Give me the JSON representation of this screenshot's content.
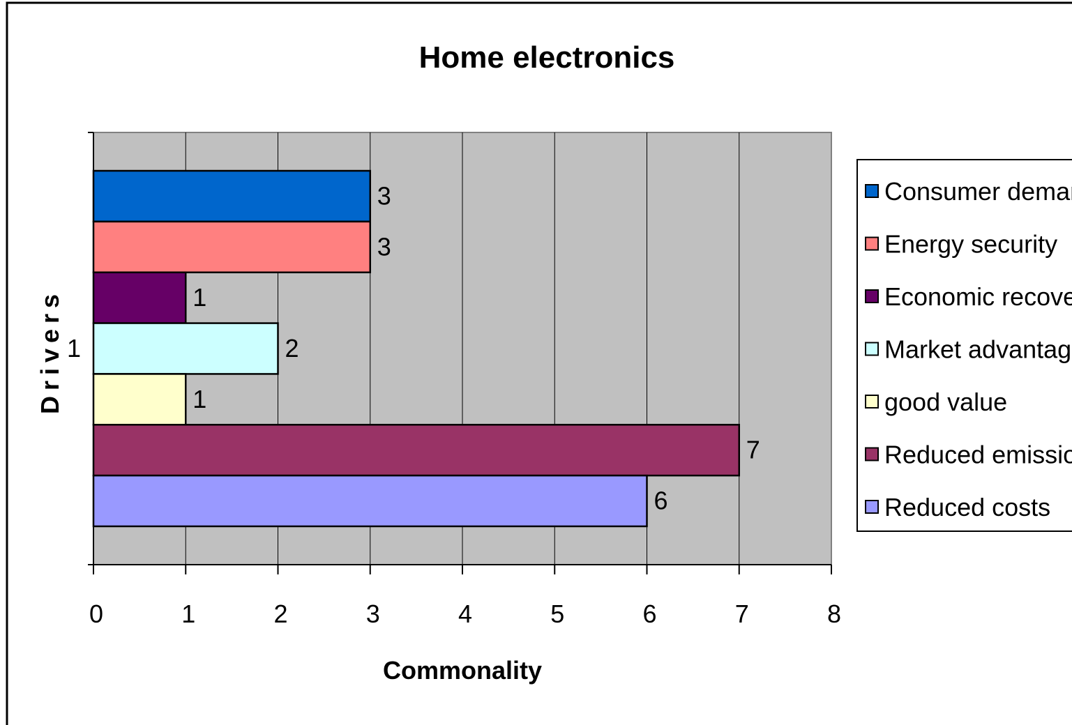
{
  "chart_data": {
    "type": "bar",
    "orientation": "horizontal",
    "title": "Home electronics",
    "xlabel": "Commonality",
    "ylabel": "Drivers",
    "categories": [
      "1"
    ],
    "xlim": [
      0,
      8
    ],
    "xticks": [
      0,
      1,
      2,
      3,
      4,
      5,
      6,
      7,
      8
    ],
    "grid": "vertical",
    "legend_position": "right",
    "series": [
      {
        "name": "Consumer demand",
        "values": [
          3
        ],
        "color": "#0066CC"
      },
      {
        "name": "Energy security",
        "values": [
          3
        ],
        "color": "#FF8080"
      },
      {
        "name": "Economic recovery",
        "values": [
          1
        ],
        "color": "#660066"
      },
      {
        "name": "Market advantage",
        "values": [
          2
        ],
        "color": "#CCFFFF"
      },
      {
        "name": "good value",
        "values": [
          1
        ],
        "color": "#FFFFCC"
      },
      {
        "name": "Reduced emissions",
        "values": [
          7
        ],
        "color": "#993366"
      },
      {
        "name": "Reduced costs",
        "values": [
          6
        ],
        "color": "#9999FF"
      }
    ],
    "plot_background": "#C0C0C0"
  }
}
